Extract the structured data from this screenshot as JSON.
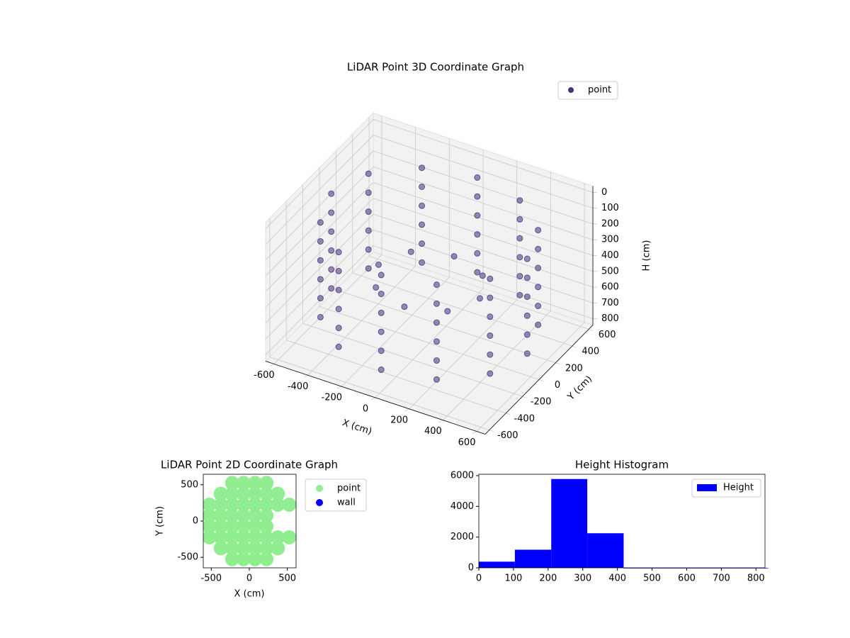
{
  "chart_data": [
    {
      "type": "scatter3d",
      "title": "LiDAR Point 3D Coordinate Graph",
      "xlabel": "X (cm)",
      "ylabel": "Y (cm)",
      "zlabel": "H (cm)",
      "legend": "upper right",
      "xlim": [
        -650,
        650
      ],
      "ylim": [
        -650,
        650
      ],
      "zlim": [
        840,
        -40
      ],
      "xticks": [
        -600,
        -400,
        -200,
        0,
        200,
        400,
        600
      ],
      "yticks": [
        -600,
        -400,
        -200,
        0,
        200,
        400,
        600
      ],
      "zticks": [
        0,
        100,
        200,
        300,
        400,
        500,
        600,
        700,
        800
      ],
      "series": [
        {
          "name": "point",
          "color": "#46327e",
          "x": [
            580,
            502,
            290,
            0,
            -290,
            -502,
            -580,
            -502,
            -290,
            0,
            290,
            502,
            580,
            502,
            290,
            0,
            -290,
            -502,
            -580,
            -502,
            -290,
            0,
            290,
            502,
            580,
            502,
            290,
            0,
            -290,
            -502,
            -580,
            -502,
            -290,
            0,
            290,
            502,
            580,
            502,
            290,
            0,
            -290,
            -502,
            -580,
            -502,
            -290,
            0,
            290,
            502,
            580,
            502,
            290,
            0,
            -290,
            -502,
            -580,
            -502,
            -290,
            0,
            290,
            502,
            580,
            502,
            290,
            0,
            -290,
            -502,
            -580,
            -502,
            -290,
            0,
            290,
            502,
            300,
            212,
            0,
            -212,
            -300,
            -212,
            0,
            212
          ],
          "y": [
            0,
            290,
            502,
            580,
            502,
            290,
            0,
            -290,
            -502,
            -580,
            -502,
            -290,
            0,
            290,
            502,
            580,
            502,
            290,
            0,
            -290,
            -502,
            -580,
            -502,
            -290,
            0,
            290,
            502,
            580,
            502,
            290,
            0,
            -290,
            -502,
            -580,
            -502,
            -290,
            0,
            290,
            502,
            580,
            502,
            290,
            0,
            -290,
            -502,
            -580,
            -502,
            -290,
            0,
            290,
            502,
            580,
            502,
            290,
            0,
            -290,
            -502,
            -580,
            -502,
            -290,
            0,
            290,
            502,
            580,
            502,
            290,
            0,
            -290,
            -502,
            -580,
            -502,
            -290,
            0,
            212,
            300,
            212,
            0,
            -212,
            -300,
            -212
          ],
          "z": [
            100,
            100,
            100,
            100,
            100,
            100,
            100,
            100,
            100,
            100,
            100,
            100,
            220,
            220,
            220,
            220,
            220,
            220,
            220,
            220,
            220,
            220,
            220,
            220,
            340,
            340,
            340,
            340,
            340,
            340,
            340,
            340,
            340,
            340,
            340,
            340,
            460,
            460,
            460,
            460,
            460,
            460,
            460,
            460,
            460,
            460,
            460,
            460,
            580,
            580,
            580,
            580,
            580,
            580,
            580,
            580,
            580,
            580,
            580,
            580,
            700,
            700,
            700,
            700,
            700,
            700,
            700,
            700,
            700,
            700,
            700,
            700,
            450,
            450,
            450,
            450,
            450,
            450,
            450,
            450
          ]
        }
      ]
    },
    {
      "type": "scatter",
      "title": "LiDAR Point 2D Coordinate Graph",
      "xlabel": "X (cm)",
      "ylabel": "Y (cm)",
      "legend": "outside right",
      "xlim": [
        -605,
        615
      ],
      "ylim": [
        -645,
        645
      ],
      "xticks": [
        -500,
        0,
        500
      ],
      "yticks": [
        -500,
        0,
        500
      ],
      "series": [
        {
          "name": "point",
          "color": "#90ee90",
          "x": [
            -225,
            -75,
            75,
            225,
            -375,
            -225,
            -75,
            75,
            225,
            375,
            -525,
            -375,
            -225,
            -75,
            75,
            225,
            375,
            525,
            -525,
            -375,
            -225,
            -75,
            75,
            225,
            -525,
            -375,
            -225,
            -75,
            75,
            225,
            -525,
            -375,
            -225,
            -75,
            75,
            225,
            375,
            525,
            -375,
            -225,
            -75,
            75,
            225,
            375,
            -225,
            -75,
            75,
            225
          ],
          "y": [
            525,
            525,
            525,
            525,
            375,
            375,
            375,
            375,
            375,
            375,
            225,
            225,
            225,
            225,
            225,
            225,
            225,
            225,
            75,
            75,
            75,
            75,
            75,
            75,
            -75,
            -75,
            -75,
            -75,
            -75,
            -75,
            -225,
            -225,
            -225,
            -225,
            -225,
            -225,
            -225,
            -225,
            -375,
            -375,
            -375,
            -375,
            -375,
            -375,
            -525,
            -525,
            -525,
            -525
          ]
        },
        {
          "name": "wall",
          "color": "#0000ff",
          "x": [],
          "y": []
        }
      ]
    },
    {
      "type": "histogram",
      "title": "Height Histogram",
      "legend": "upper right",
      "xlim": [
        0,
        826
      ],
      "ylim": [
        0,
        6090
      ],
      "xticks": [
        0,
        100,
        200,
        300,
        400,
        500,
        600,
        700,
        800
      ],
      "yticks": [
        0,
        2000,
        4000,
        6000
      ],
      "series": [
        {
          "name": "Height",
          "color": "#0000ff",
          "bins": [
            0,
            104,
            209,
            313,
            418,
            522,
            626,
            731,
            835
          ],
          "values": [
            400,
            1180,
            5780,
            2250,
            0,
            0,
            0,
            0
          ]
        }
      ]
    }
  ]
}
